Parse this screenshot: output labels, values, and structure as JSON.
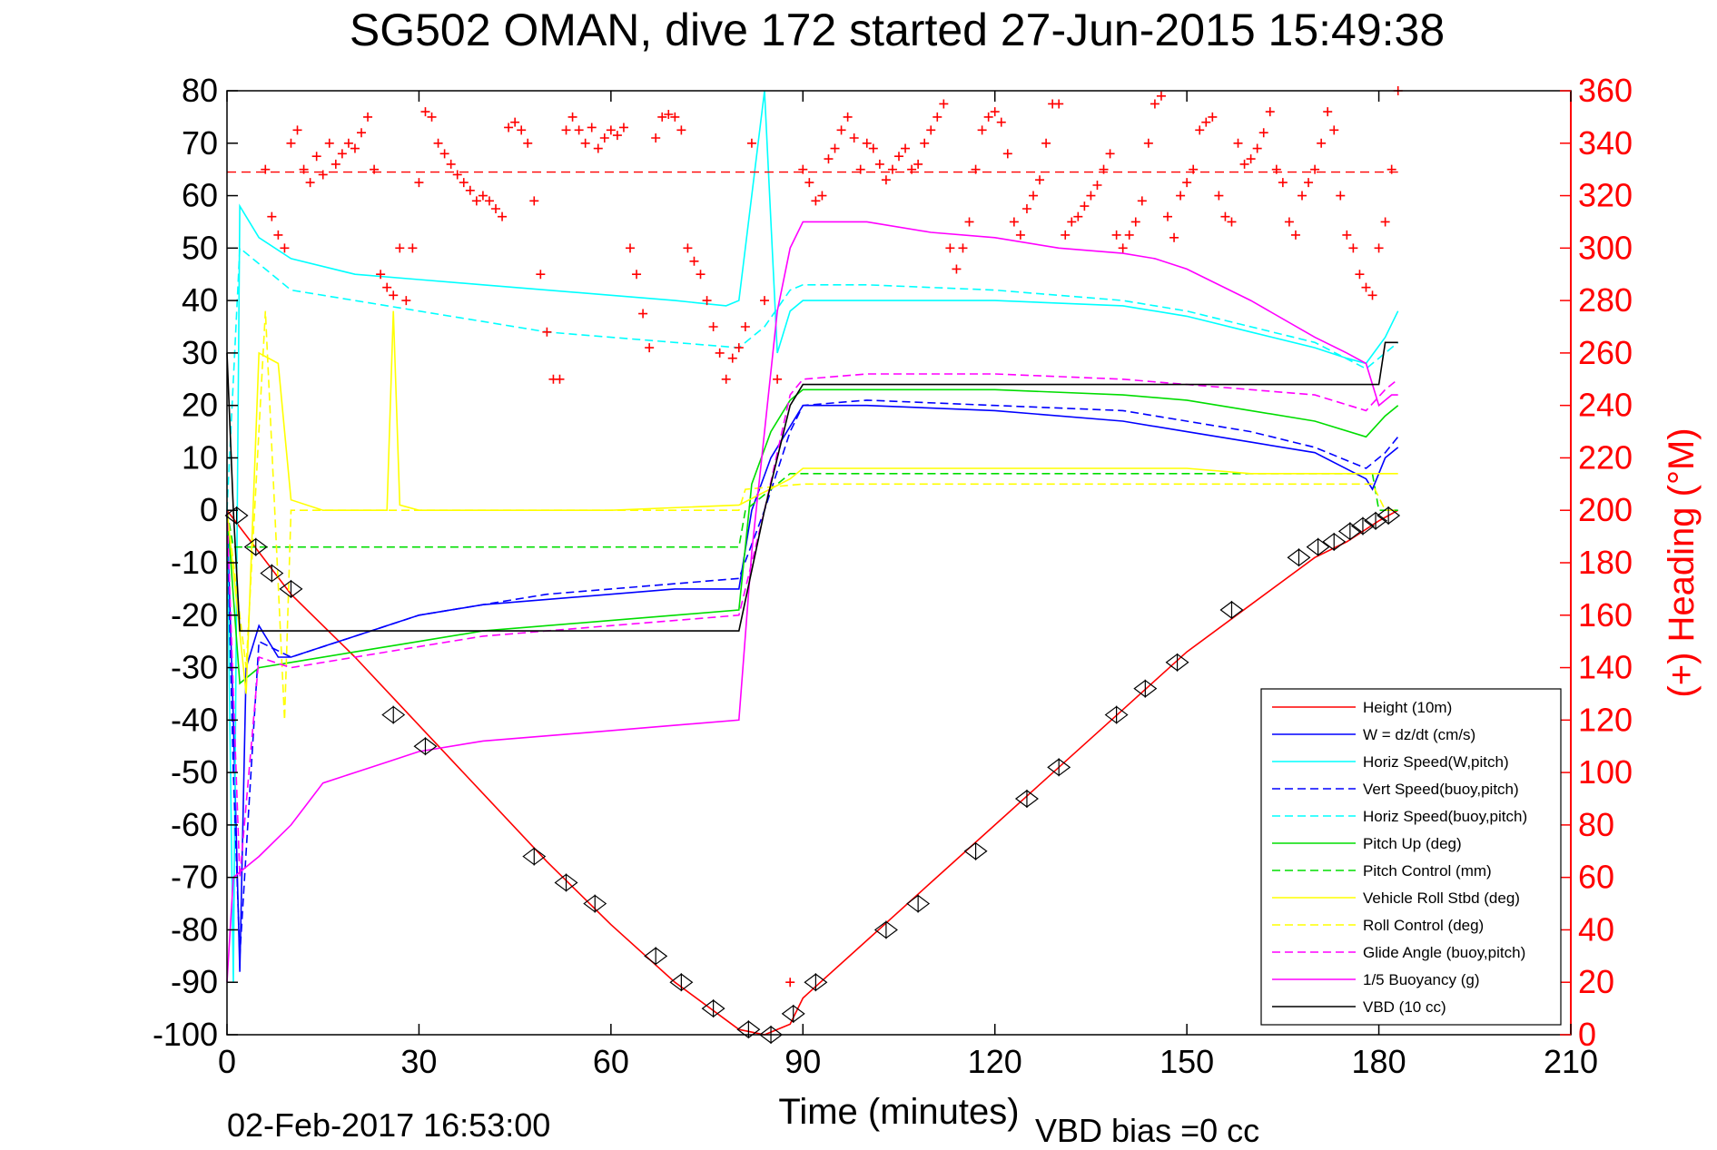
{
  "chart_data": {
    "type": "line",
    "title": "SG502 OMAN, dive 172 started 27-Jun-2015 15:49:38",
    "xlabel": "Time (minutes)",
    "ylabel_right": "(+) Heading (°M)",
    "footer_left": "02-Feb-2017 16:53:00",
    "footer_right": "VBD bias =0 cc",
    "xlim": [
      0,
      210
    ],
    "ylim": [
      -100,
      80
    ],
    "ylim_right": [
      0,
      360
    ],
    "x_ticks": [
      "0",
      "30",
      "60",
      "90",
      "120",
      "150",
      "180",
      "210"
    ],
    "y_ticks": [
      "-100",
      "-90",
      "-80",
      "-70",
      "-60",
      "-50",
      "-40",
      "-30",
      "-20",
      "-10",
      "0",
      "10",
      "20",
      "30",
      "40",
      "50",
      "60",
      "70",
      "80"
    ],
    "y_ticks_right": [
      "0",
      "20",
      "40",
      "60",
      "80",
      "100",
      "120",
      "140",
      "160",
      "180",
      "200",
      "220",
      "240",
      "260",
      "280",
      "300",
      "320",
      "340",
      "360"
    ],
    "grid": false,
    "legend_position": "bottom-right",
    "colors": {
      "heading": "#ff0000",
      "axis": "#000000",
      "right_axis": "#ff0000"
    },
    "series": [
      {
        "name": "Height (10m)",
        "color": "#ff0000",
        "style": "solid",
        "x": [
          0,
          5,
          10,
          20,
          30,
          40,
          50,
          60,
          70,
          80,
          84,
          88,
          90,
          100,
          110,
          120,
          130,
          140,
          150,
          160,
          170,
          175,
          180,
          183
        ],
        "y": [
          0,
          -8,
          -16,
          -28,
          -41,
          -54,
          -67,
          -79,
          -90,
          -99,
          -100,
          -98,
          -93,
          -82,
          -71,
          -60,
          -49,
          -38,
          -27,
          -18,
          -9,
          -6,
          -2,
          0
        ]
      },
      {
        "name": "W = dz/dt (cm/s)",
        "color": "#0000ff",
        "style": "solid",
        "x": [
          0,
          1,
          2,
          3,
          5,
          8,
          10,
          15,
          20,
          30,
          40,
          50,
          60,
          70,
          80,
          82,
          85,
          88,
          90,
          100,
          120,
          140,
          150,
          160,
          170,
          178,
          179,
          181,
          183
        ],
        "y": [
          0,
          -40,
          -88,
          -30,
          -22,
          -28,
          -28,
          -26,
          -24,
          -20,
          -18,
          -17,
          -16,
          -15,
          -15,
          0,
          10,
          16,
          20,
          20,
          19,
          17,
          15,
          13,
          11,
          6,
          4,
          10,
          12
        ]
      },
      {
        "name": "Horiz Speed(W,pitch)",
        "color": "#00ffff",
        "style": "solid",
        "x": [
          0,
          1,
          2,
          5,
          10,
          20,
          30,
          40,
          50,
          60,
          70,
          78,
          80,
          82,
          84,
          86,
          88,
          90,
          100,
          110,
          120,
          140,
          150,
          160,
          170,
          175,
          178,
          181,
          183
        ],
        "y": [
          0,
          -90,
          58,
          52,
          48,
          45,
          44,
          43,
          42,
          41,
          40,
          39,
          40,
          60,
          80,
          30,
          38,
          40,
          40,
          40,
          40,
          39,
          37,
          34,
          31,
          29,
          28,
          33,
          38
        ]
      },
      {
        "name": "Vert Speed(buoy,pitch)",
        "color": "#0000ff",
        "style": "dashed",
        "x": [
          0,
          1,
          2,
          5,
          10,
          20,
          30,
          40,
          50,
          60,
          70,
          80,
          84,
          88,
          90,
          100,
          120,
          140,
          150,
          160,
          170,
          178,
          181,
          183
        ],
        "y": [
          0,
          -50,
          -85,
          -25,
          -28,
          -24,
          -20,
          -18,
          -16,
          -15,
          -14,
          -13,
          0,
          15,
          20,
          21,
          20,
          19,
          17,
          15,
          12,
          8,
          11,
          14
        ]
      },
      {
        "name": "Horiz Speed(buoy,pitch)",
        "color": "#00ffff",
        "style": "dashed",
        "x": [
          0,
          2,
          10,
          20,
          30,
          40,
          50,
          60,
          70,
          80,
          84,
          88,
          90,
          100,
          120,
          140,
          150,
          160,
          170,
          178,
          181,
          183
        ],
        "y": [
          0,
          50,
          42,
          40,
          38,
          36,
          34,
          33,
          32,
          31,
          35,
          42,
          43,
          43,
          42,
          40,
          38,
          35,
          32,
          27,
          30,
          32
        ]
      },
      {
        "name": "Pitch Up (deg)",
        "color": "#00dd00",
        "style": "solid",
        "x": [
          0,
          2,
          5,
          10,
          20,
          30,
          40,
          50,
          60,
          70,
          80,
          82,
          85,
          88,
          90,
          100,
          120,
          140,
          150,
          160,
          170,
          178,
          181,
          183
        ],
        "y": [
          0,
          -33,
          -30,
          -29,
          -27,
          -25,
          -23,
          -22,
          -21,
          -20,
          -19,
          5,
          15,
          21,
          23,
          23,
          23,
          22,
          21,
          19,
          17,
          14,
          18,
          20
        ]
      },
      {
        "name": "Pitch Control (mm)",
        "color": "#00dd00",
        "style": "dashed",
        "x": [
          0,
          1,
          5,
          10,
          80,
          81,
          88,
          90,
          179,
          180,
          183
        ],
        "y": [
          0,
          -7,
          -7,
          -7,
          -7,
          0,
          7,
          7,
          7,
          0,
          0
        ]
      },
      {
        "name": "Vehicle Roll Stbd (deg)",
        "color": "#ffff00",
        "style": "solid",
        "x": [
          0,
          3,
          5,
          8,
          10,
          15,
          20,
          25,
          26,
          27,
          30,
          40,
          60,
          80,
          88,
          90,
          100,
          120,
          140,
          150,
          160,
          170,
          180,
          183
        ],
        "y": [
          0,
          -35,
          30,
          28,
          2,
          0,
          0,
          0,
          38,
          1,
          0,
          0,
          0,
          1,
          6,
          8,
          8,
          8,
          8,
          8,
          7,
          7,
          7,
          7
        ]
      },
      {
        "name": "Roll Control (deg)",
        "color": "#ffff00",
        "style": "dashed",
        "x": [
          0,
          3,
          6,
          9,
          10,
          30,
          40,
          60,
          80,
          81,
          90,
          110,
          130,
          150,
          170,
          179,
          181,
          183
        ],
        "y": [
          0,
          -30,
          38,
          -40,
          0,
          0,
          0,
          0,
          0,
          4,
          5,
          5,
          5,
          5,
          5,
          5,
          0,
          0
        ]
      },
      {
        "name": "Glide Angle (buoy,pitch)",
        "color": "#ff00ff",
        "style": "dashed",
        "x": [
          0,
          2,
          5,
          10,
          20,
          30,
          40,
          50,
          60,
          70,
          80,
          84,
          88,
          90,
          100,
          120,
          140,
          150,
          160,
          170,
          178,
          181,
          183
        ],
        "y": [
          0,
          -70,
          -28,
          -30,
          -28,
          -26,
          -24,
          -23,
          -22,
          -21,
          -20,
          0,
          22,
          25,
          26,
          26,
          25,
          24,
          23,
          22,
          19,
          23,
          25
        ]
      },
      {
        "name": "1/5 Buoyancy (g)",
        "color": "#ff00ff",
        "style": "solid",
        "x": [
          0,
          1,
          3,
          5,
          10,
          15,
          20,
          25,
          30,
          40,
          50,
          60,
          70,
          80,
          82,
          84,
          86,
          88,
          90,
          100,
          110,
          120,
          130,
          140,
          145,
          150,
          160,
          170,
          175,
          178,
          180,
          182,
          183
        ],
        "y": [
          -90,
          -70,
          -68,
          -66,
          -60,
          -52,
          -50,
          -48,
          -46,
          -44,
          -43,
          -42,
          -41,
          -40,
          -8,
          15,
          38,
          50,
          55,
          55,
          53,
          52,
          50,
          49,
          48,
          46,
          40,
          33,
          30,
          28,
          20,
          22,
          22
        ]
      },
      {
        "name": "VBD (10 cc)",
        "color": "#000000",
        "style": "solid",
        "x": [
          0,
          1,
          2,
          80,
          84,
          88,
          90,
          180,
          181,
          183
        ],
        "y": [
          30,
          0,
          -23,
          -23,
          0,
          20,
          24,
          24,
          32,
          32
        ]
      }
    ],
    "markers": {
      "type": "triangle-pairs",
      "color": "#000000",
      "x": [
        1.5,
        4.5,
        7,
        10,
        26,
        31,
        48,
        53,
        57.5,
        67,
        71,
        76,
        81.5,
        85,
        88.5,
        92,
        103,
        108,
        117,
        125,
        130,
        139,
        143.5,
        148.5,
        157,
        167.5,
        170.5,
        173,
        175.5,
        177.5,
        179.5,
        181.5
      ],
      "y": [
        -1,
        -7,
        -12,
        -15,
        -39,
        -45,
        -66,
        -71,
        -75,
        -85,
        -90,
        -95,
        -99,
        -100,
        -96,
        -90,
        -80,
        -75,
        -65,
        -55,
        -49,
        -39,
        -34,
        -29,
        -19,
        -9,
        -7,
        -6,
        -4,
        -3,
        -2,
        -1
      ]
    },
    "heading": {
      "name": "Heading",
      "color": "#ff0000",
      "target": 329,
      "x": [
        6,
        7,
        8,
        9,
        10,
        11,
        12,
        13,
        14,
        15,
        16,
        17,
        18,
        19,
        20,
        21,
        22,
        23,
        24,
        25,
        26,
        27,
        28,
        29,
        30,
        31,
        32,
        33,
        34,
        35,
        36,
        37,
        38,
        39,
        40,
        41,
        42,
        43,
        44,
        45,
        46,
        47,
        48,
        49,
        50,
        51,
        52,
        53,
        54,
        55,
        56,
        57,
        58,
        59,
        60,
        61,
        62,
        63,
        64,
        65,
        66,
        67,
        68,
        69,
        70,
        71,
        72,
        73,
        74,
        75,
        76,
        77,
        78,
        79,
        80,
        81,
        82,
        84,
        86,
        88,
        90,
        91,
        92,
        93,
        94,
        95,
        96,
        97,
        98,
        99,
        100,
        101,
        102,
        103,
        104,
        105,
        106,
        107,
        108,
        109,
        110,
        111,
        112,
        113,
        114,
        115,
        116,
        117,
        118,
        119,
        120,
        121,
        122,
        123,
        124,
        125,
        126,
        127,
        128,
        129,
        130,
        131,
        132,
        133,
        134,
        135,
        136,
        137,
        138,
        139,
        140,
        141,
        142,
        143,
        144,
        145,
        146,
        147,
        148,
        149,
        150,
        151,
        152,
        153,
        154,
        155,
        156,
        157,
        158,
        159,
        160,
        161,
        162,
        163,
        164,
        165,
        166,
        167,
        168,
        169,
        170,
        171,
        172,
        173,
        174,
        175,
        176,
        177,
        178,
        179,
        180,
        181,
        182,
        183
      ],
      "y": [
        330,
        312,
        305,
        300,
        340,
        345,
        330,
        325,
        335,
        328,
        340,
        332,
        336,
        340,
        338,
        344,
        350,
        330,
        290,
        285,
        282,
        300,
        280,
        300,
        325,
        352,
        350,
        340,
        336,
        332,
        328,
        325,
        322,
        318,
        320,
        318,
        315,
        312,
        346,
        348,
        345,
        340,
        318,
        290,
        268,
        250,
        250,
        345,
        350,
        345,
        340,
        346,
        338,
        342,
        345,
        343,
        346,
        300,
        290,
        275,
        262,
        342,
        350,
        351,
        350,
        345,
        300,
        295,
        290,
        280,
        270,
        260,
        250,
        258,
        262,
        270,
        340,
        280,
        250,
        20,
        330,
        325,
        318,
        320,
        334,
        338,
        345,
        350,
        342,
        330,
        340,
        338,
        332,
        326,
        330,
        335,
        338,
        330,
        332,
        340,
        345,
        350,
        355,
        300,
        292,
        300,
        310,
        330,
        345,
        350,
        352,
        348,
        336,
        310,
        305,
        315,
        320,
        326,
        340,
        355,
        355,
        305,
        310,
        312,
        316,
        320,
        324,
        330,
        336,
        305,
        300,
        305,
        310,
        318,
        340,
        355,
        358,
        312,
        304,
        320,
        325,
        330,
        345,
        348,
        350,
        320,
        312,
        310,
        340,
        332,
        334,
        338,
        344,
        352,
        330,
        325,
        310,
        305,
        320,
        325,
        330,
        340,
        352,
        345,
        320,
        305,
        300,
        290,
        285,
        282,
        300,
        310,
        330,
        360
      ]
    }
  }
}
